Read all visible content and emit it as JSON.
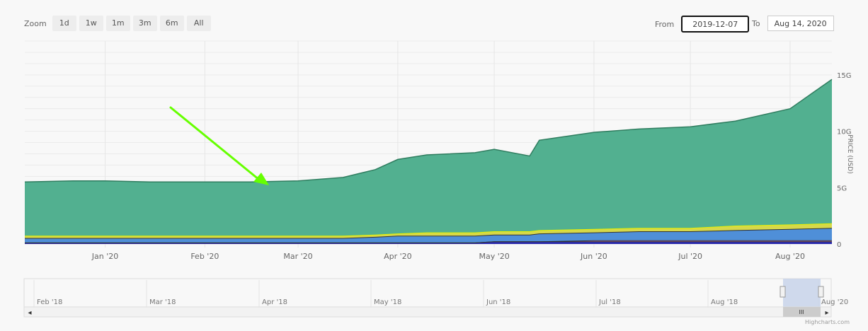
{
  "range_selector": {
    "zoom_label": "Zoom",
    "buttons": [
      "1d",
      "1w",
      "1m",
      "3m",
      "6m",
      "All"
    ],
    "from_label": "From",
    "from_value": "2019-12-07",
    "to_label": "To",
    "to_value": "Aug 14, 2020"
  },
  "credit": "Highcharts.com",
  "navigator": {
    "labels": [
      "Feb '18",
      "Mar '18",
      "Apr '18",
      "May '18",
      "Jun '18",
      "Jul '18",
      "Aug '18",
      "Aug '20"
    ],
    "handle_grip": "III",
    "scroll_left": "◂",
    "scroll_right": "▸"
  },
  "annotation": {
    "type": "arrow",
    "color": "#66ff00"
  },
  "chart_data": {
    "type": "area",
    "stacked": true,
    "xlabel": "",
    "ylabel": "PRICE (USD)",
    "ylim": [
      0,
      18
    ],
    "y_unit": "G",
    "y_ticks": [
      0,
      5,
      10,
      15
    ],
    "y_tick_labels": [
      "0",
      "5G",
      "10G",
      "15G"
    ],
    "x_ticks": [
      "Jan '20",
      "Feb '20",
      "Mar '20",
      "Apr '20",
      "May '20",
      "Jun '20",
      "Jul '20",
      "Aug '20"
    ],
    "x_range": [
      "2019-12-07",
      "2020-08-14"
    ],
    "grid": true,
    "dates": [
      "2019-12-07",
      "2019-12-22",
      "2020-01-01",
      "2020-01-15",
      "2020-02-01",
      "2020-02-15",
      "2020-03-01",
      "2020-03-15",
      "2020-03-25",
      "2020-04-01",
      "2020-04-10",
      "2020-04-25",
      "2020-05-01",
      "2020-05-12",
      "2020-05-15",
      "2020-06-01",
      "2020-06-15",
      "2020-07-01",
      "2020-07-15",
      "2020-08-01",
      "2020-08-14"
    ],
    "series": [
      {
        "color": "#2b2bb0",
        "values": [
          0.1,
          0.1,
          0.1,
          0.1,
          0.1,
          0.1,
          0.1,
          0.1,
          0.1,
          0.1,
          0.1,
          0.1,
          0.2,
          0.2,
          0.2,
          0.2,
          0.2,
          0.2,
          0.2,
          0.2,
          0.2
        ]
      },
      {
        "color": "#f07fc0",
        "values": [
          0,
          0,
          0,
          0,
          0,
          0,
          0,
          0,
          0,
          0,
          0,
          0,
          0,
          0,
          0,
          0.1,
          0.1,
          0.1,
          0.1,
          0.1,
          0.1
        ]
      },
      {
        "color": "#4f8fd8",
        "values": [
          0.4,
          0.4,
          0.4,
          0.4,
          0.4,
          0.4,
          0.4,
          0.4,
          0.5,
          0.6,
          0.6,
          0.6,
          0.6,
          0.6,
          0.7,
          0.7,
          0.8,
          0.8,
          0.9,
          1.0,
          1.1
        ]
      },
      {
        "color": "#d6d84a",
        "values": [
          0.2,
          0.2,
          0.2,
          0.2,
          0.2,
          0.2,
          0.2,
          0.2,
          0.2,
          0.2,
          0.3,
          0.3,
          0.3,
          0.3,
          0.3,
          0.3,
          0.3,
          0.3,
          0.4,
          0.4,
          0.4
        ]
      },
      {
        "color": "#52b090",
        "values": [
          4.8,
          4.9,
          4.9,
          4.8,
          4.8,
          4.8,
          4.9,
          5.2,
          5.8,
          6.6,
          6.9,
          7.1,
          7.3,
          6.7,
          8.0,
          8.6,
          8.8,
          9.0,
          9.3,
          10.3,
          12.8
        ]
      }
    ]
  }
}
